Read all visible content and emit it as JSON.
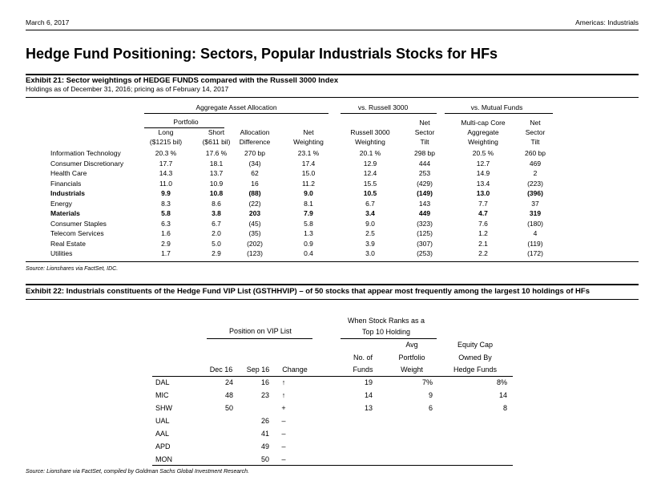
{
  "header": {
    "date": "March 6, 2017",
    "region": "Americas: Industrials"
  },
  "title": "Hedge Fund Positioning: Sectors, Popular Industrials Stocks for HFs",
  "exhibit21": {
    "title": "Exhibit 21: Sector weightings of HEDGE FUNDS compared with the Russell 3000 Index",
    "subtitle": "Holdings as of December 31, 2016; pricing as of February 14, 2017",
    "groups": [
      "Aggregate Asset Allocation",
      "vs. Russell 3000",
      "vs. Mutual Funds"
    ],
    "portfolio_label": "Portfolio",
    "columns": [
      [
        "Long",
        "($1215 bil)"
      ],
      [
        "Short",
        "($611 bil)"
      ],
      [
        "Allocation",
        "Difference"
      ],
      [
        "Net",
        "Weighting"
      ],
      [
        "Russell 3000",
        "Weighting"
      ],
      [
        "Net",
        "Sector",
        "Tilt"
      ],
      [
        "Multi-cap Core",
        "Aggregate",
        "Weighting"
      ],
      [
        "Net",
        "Sector",
        "Tilt"
      ]
    ],
    "rows": [
      {
        "sector": "Information Technology",
        "values": [
          "20.3 %",
          "17.6 %",
          "270 bp",
          "23.1 %",
          "20.1 %",
          "298 bp",
          "20.5 %",
          "260 bp"
        ]
      },
      {
        "sector": "Consumer Discretionary",
        "values": [
          "17.7",
          "18.1",
          "(34)",
          "17.4",
          "12.9",
          "444",
          "12.7",
          "469"
        ]
      },
      {
        "sector": "Health Care",
        "values": [
          "14.3",
          "13.7",
          "62",
          "15.0",
          "12.4",
          "253",
          "14.9",
          "2"
        ]
      },
      {
        "sector": "Financials",
        "values": [
          "11.0",
          "10.9",
          "16",
          "11.2",
          "15.5",
          "(429)",
          "13.4",
          "(223)"
        ]
      },
      {
        "sector": "Industrials",
        "values": [
          "9.9",
          "10.8",
          "(88)",
          "9.0",
          "10.5",
          "(149)",
          "13.0",
          "(396)"
        ]
      },
      {
        "sector": "Energy",
        "values": [
          "8.3",
          "8.6",
          "(22)",
          "8.1",
          "6.7",
          "143",
          "7.7",
          "37"
        ]
      },
      {
        "sector": "Materials",
        "values": [
          "5.8",
          "3.8",
          "203",
          "7.9",
          "3.4",
          "449",
          "4.7",
          "319"
        ]
      },
      {
        "sector": "Consumer Staples",
        "values": [
          "6.3",
          "6.7",
          "(45)",
          "5.8",
          "9.0",
          "(323)",
          "7.6",
          "(180)"
        ]
      },
      {
        "sector": "Telecom Services",
        "values": [
          "1.6",
          "2.0",
          "(35)",
          "1.3",
          "2.5",
          "(125)",
          "1.2",
          "4"
        ]
      },
      {
        "sector": "Real Estate",
        "values": [
          "2.9",
          "5.0",
          "(202)",
          "0.9",
          "3.9",
          "(307)",
          "2.1",
          "(119)"
        ]
      },
      {
        "sector": "Utilities",
        "values": [
          "1.7",
          "2.9",
          "(123)",
          "0.4",
          "3.0",
          "(253)",
          "2.2",
          "(172)"
        ]
      }
    ],
    "source": "Source: Lionshares via FactSet, IDC."
  },
  "exhibit22": {
    "title": "Exhibit 22: Industrials constituents of the Hedge Fund VIP List (GSTHHVIP) – of 50 stocks that appear most frequently among the largest 10 holdings of HFs",
    "group_position": "Position on VIP List",
    "group_ranks": [
      "When Stock Ranks as a",
      "Top 10 Holding"
    ],
    "columns": [
      [
        "Dec 16"
      ],
      [
        "Sep 16"
      ],
      [
        "Change"
      ],
      [
        "No. of",
        "Funds"
      ],
      [
        "Avg",
        "Portfolio",
        "Weight"
      ],
      [
        "Equity Cap",
        "Owned By",
        "Hedge Funds"
      ]
    ],
    "rows": [
      {
        "ticker": "DAL",
        "values": [
          "24",
          "16",
          "↑",
          "19",
          "7%",
          "8%"
        ]
      },
      {
        "ticker": "MIC",
        "values": [
          "48",
          "23",
          "↑",
          "14",
          "9",
          "14"
        ]
      },
      {
        "ticker": "SHW",
        "values": [
          "50",
          null,
          "+",
          "13",
          "6",
          "8"
        ]
      },
      {
        "ticker": "UAL",
        "values": [
          null,
          "26",
          "–",
          null,
          null,
          null
        ]
      },
      {
        "ticker": "AAL",
        "values": [
          null,
          "41",
          "–",
          null,
          null,
          null
        ]
      },
      {
        "ticker": "APD",
        "values": [
          null,
          "49",
          "–",
          null,
          null,
          null
        ]
      },
      {
        "ticker": "MON",
        "values": [
          null,
          "50",
          "–",
          null,
          null,
          null
        ]
      }
    ],
    "source": "Source: Lionshare via FactSet, compiled by Goldman Sachs Global Investment Research."
  }
}
